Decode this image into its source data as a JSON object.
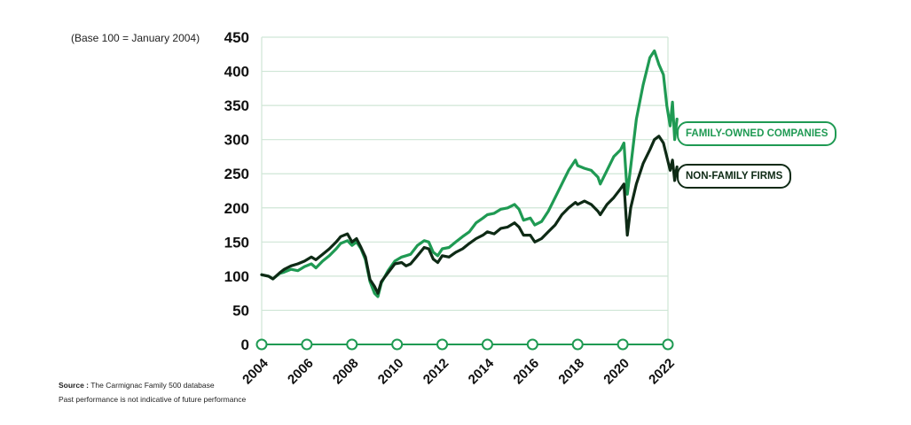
{
  "header": {
    "base_note": "(Base 100 = January 2004)"
  },
  "footer": {
    "source_label": "Source :",
    "source_text": "The Carmignac Family 500 database",
    "disclaimer": "Past performance is not indicative of future performance"
  },
  "colors": {
    "family": "#1f9a53",
    "nonfamily": "#0e2a15",
    "grid": "#cfe6d6",
    "axis": "#1f9a53"
  },
  "chart_data": {
    "type": "line",
    "title": "",
    "xlabel": "",
    "ylabel": "",
    "xlim": [
      2004,
      2022
    ],
    "ylim": [
      0,
      450
    ],
    "y_ticks": [
      "0",
      "50",
      "100",
      "150",
      "200",
      "250",
      "300",
      "350",
      "400",
      "450"
    ],
    "x_ticks": [
      "2004",
      "2006",
      "2008",
      "2010",
      "2012",
      "2014",
      "2016",
      "2018",
      "2020",
      "2022"
    ],
    "grid": true,
    "legend": "right",
    "series": [
      {
        "name": "FAMILY-OWNED COMPANIES",
        "color": "#1f9a53",
        "points": [
          [
            2004.0,
            102
          ],
          [
            2004.3,
            100
          ],
          [
            2004.5,
            96
          ],
          [
            2004.8,
            104
          ],
          [
            2005.0,
            106
          ],
          [
            2005.3,
            110
          ],
          [
            2005.6,
            108
          ],
          [
            2005.9,
            114
          ],
          [
            2006.2,
            118
          ],
          [
            2006.4,
            112
          ],
          [
            2006.7,
            122
          ],
          [
            2007.0,
            130
          ],
          [
            2007.3,
            140
          ],
          [
            2007.5,
            148
          ],
          [
            2007.8,
            152
          ],
          [
            2008.0,
            145
          ],
          [
            2008.2,
            150
          ],
          [
            2008.4,
            140
          ],
          [
            2008.6,
            124
          ],
          [
            2008.8,
            92
          ],
          [
            2009.0,
            75
          ],
          [
            2009.15,
            70
          ],
          [
            2009.3,
            90
          ],
          [
            2009.6,
            108
          ],
          [
            2009.9,
            122
          ],
          [
            2010.2,
            128
          ],
          [
            2010.4,
            130
          ],
          [
            2010.6,
            132
          ],
          [
            2010.9,
            145
          ],
          [
            2011.2,
            152
          ],
          [
            2011.4,
            150
          ],
          [
            2011.6,
            135
          ],
          [
            2011.8,
            130
          ],
          [
            2012.0,
            140
          ],
          [
            2012.3,
            142
          ],
          [
            2012.6,
            150
          ],
          [
            2012.9,
            158
          ],
          [
            2013.2,
            165
          ],
          [
            2013.5,
            178
          ],
          [
            2013.8,
            185
          ],
          [
            2014.0,
            190
          ],
          [
            2014.3,
            192
          ],
          [
            2014.6,
            198
          ],
          [
            2014.9,
            200
          ],
          [
            2015.2,
            205
          ],
          [
            2015.4,
            198
          ],
          [
            2015.6,
            182
          ],
          [
            2015.9,
            185
          ],
          [
            2016.1,
            175
          ],
          [
            2016.4,
            180
          ],
          [
            2016.7,
            195
          ],
          [
            2017.0,
            215
          ],
          [
            2017.3,
            235
          ],
          [
            2017.6,
            255
          ],
          [
            2017.9,
            270
          ],
          [
            2018.0,
            262
          ],
          [
            2018.3,
            258
          ],
          [
            2018.6,
            255
          ],
          [
            2018.9,
            245
          ],
          [
            2019.0,
            235
          ],
          [
            2019.3,
            255
          ],
          [
            2019.6,
            275
          ],
          [
            2019.9,
            285
          ],
          [
            2020.05,
            295
          ],
          [
            2020.2,
            220
          ],
          [
            2020.35,
            260
          ],
          [
            2020.6,
            330
          ],
          [
            2020.9,
            380
          ],
          [
            2021.2,
            420
          ],
          [
            2021.4,
            430
          ],
          [
            2021.6,
            410
          ],
          [
            2021.8,
            395
          ],
          [
            2021.95,
            350
          ],
          [
            2022.1,
            320
          ],
          [
            2022.2,
            355
          ],
          [
            2022.3,
            300
          ],
          [
            2022.4,
            330
          ]
        ]
      },
      {
        "name": "NON-FAMILY FIRMS",
        "color": "#0e2a15",
        "points": [
          [
            2004.0,
            102
          ],
          [
            2004.3,
            100
          ],
          [
            2004.5,
            96
          ],
          [
            2004.8,
            105
          ],
          [
            2005.0,
            110
          ],
          [
            2005.3,
            115
          ],
          [
            2005.6,
            118
          ],
          [
            2005.9,
            122
          ],
          [
            2006.2,
            128
          ],
          [
            2006.4,
            124
          ],
          [
            2006.7,
            132
          ],
          [
            2007.0,
            140
          ],
          [
            2007.3,
            150
          ],
          [
            2007.5,
            158
          ],
          [
            2007.8,
            162
          ],
          [
            2008.0,
            150
          ],
          [
            2008.2,
            155
          ],
          [
            2008.4,
            142
          ],
          [
            2008.6,
            128
          ],
          [
            2008.8,
            95
          ],
          [
            2009.0,
            85
          ],
          [
            2009.15,
            75
          ],
          [
            2009.3,
            92
          ],
          [
            2009.6,
            105
          ],
          [
            2009.9,
            118
          ],
          [
            2010.2,
            120
          ],
          [
            2010.4,
            115
          ],
          [
            2010.6,
            118
          ],
          [
            2010.9,
            130
          ],
          [
            2011.2,
            142
          ],
          [
            2011.4,
            140
          ],
          [
            2011.6,
            125
          ],
          [
            2011.8,
            120
          ],
          [
            2012.0,
            130
          ],
          [
            2012.3,
            128
          ],
          [
            2012.6,
            135
          ],
          [
            2012.9,
            140
          ],
          [
            2013.2,
            148
          ],
          [
            2013.5,
            155
          ],
          [
            2013.8,
            160
          ],
          [
            2014.0,
            165
          ],
          [
            2014.3,
            162
          ],
          [
            2014.6,
            170
          ],
          [
            2014.9,
            172
          ],
          [
            2015.2,
            178
          ],
          [
            2015.4,
            172
          ],
          [
            2015.6,
            160
          ],
          [
            2015.9,
            160
          ],
          [
            2016.1,
            150
          ],
          [
            2016.4,
            155
          ],
          [
            2016.7,
            165
          ],
          [
            2017.0,
            175
          ],
          [
            2017.3,
            190
          ],
          [
            2017.6,
            200
          ],
          [
            2017.9,
            208
          ],
          [
            2018.0,
            205
          ],
          [
            2018.3,
            210
          ],
          [
            2018.6,
            205
          ],
          [
            2018.9,
            195
          ],
          [
            2019.0,
            190
          ],
          [
            2019.3,
            205
          ],
          [
            2019.6,
            215
          ],
          [
            2019.9,
            228
          ],
          [
            2020.05,
            235
          ],
          [
            2020.2,
            160
          ],
          [
            2020.35,
            200
          ],
          [
            2020.6,
            235
          ],
          [
            2020.9,
            265
          ],
          [
            2021.2,
            285
          ],
          [
            2021.4,
            300
          ],
          [
            2021.6,
            305
          ],
          [
            2021.8,
            295
          ],
          [
            2021.95,
            275
          ],
          [
            2022.1,
            255
          ],
          [
            2022.2,
            270
          ],
          [
            2022.3,
            240
          ],
          [
            2022.4,
            260
          ]
        ]
      }
    ]
  }
}
